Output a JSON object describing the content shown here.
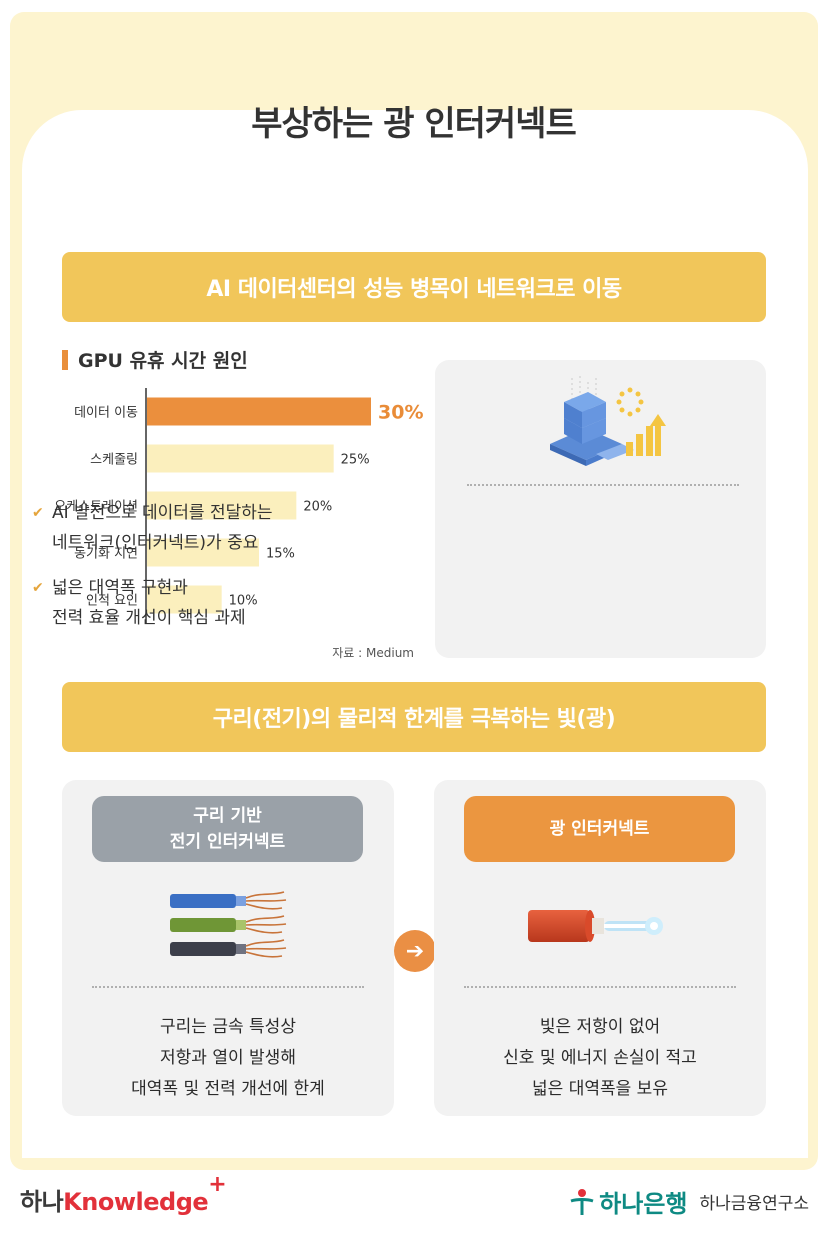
{
  "title": "부상하는 광 인터커넥트",
  "section1": {
    "banner": "AI 데이터센터의 성능 병목이 네트워크로 이동"
  },
  "chart_data": {
    "type": "bar",
    "orientation": "horizontal",
    "title": "GPU 유휴 시간 원인",
    "categories": [
      "데이터 이동",
      "스케줄링",
      "오케스트레이션",
      "동기화 지연",
      "인적 요인"
    ],
    "values": [
      30,
      25,
      20,
      15,
      10
    ],
    "value_labels": [
      "30%",
      "25%",
      "20%",
      "15%",
      "10%"
    ],
    "unit": "%",
    "highlight_index": 0,
    "colors": {
      "highlight": "#eb8f3d",
      "normal": "#fbefbd",
      "axis": "#333333",
      "highlight_label": "#e98c38"
    },
    "source": "자료 : Medium",
    "grid": false
  },
  "info": {
    "icon": "datacenter-server-icon",
    "bullets": [
      [
        "AI 발전으로 데이터를 전달하는",
        "네트워크(인터커넥트)가 중요"
      ],
      [
        "넓은 대역폭 구현과",
        "전력 효율 개선이 핵심 과제"
      ]
    ],
    "check_icon": "check-icon"
  },
  "section2": {
    "banner": "구리(전기)의 물리적 한계를 극복하는 빛(광)",
    "left": {
      "pill": [
        "구리 기반",
        "전기 인터커넥트"
      ],
      "image": "copper-wires-icon",
      "text": [
        "구리는 금속 특성상",
        "저항과 열이 발생해",
        "대역폭 및 전력 개선에 한계"
      ]
    },
    "right": {
      "pill": [
        "광 인터커넥트"
      ],
      "image": "optical-fiber-cable-icon",
      "text": [
        "빛은 저항이 없어",
        "신호 및 에너지 손실이 적고",
        "넓은 대역폭을 보유"
      ]
    },
    "arrow_icon": "arrow-right-icon"
  },
  "footer": {
    "left_prefix": "하나",
    "left_brand": "Knowledge",
    "left_plus": "+",
    "logo_icon": "hana-bank-logo-icon",
    "right_logo": "하나은행",
    "right_sub": "하나금융연구소"
  },
  "theme": {
    "frame": "#fdf4cf",
    "banner": "#f1c65a",
    "orange": "#eb9640",
    "gray_pill": "#9aa1a8",
    "panel": "#f2f2f2"
  }
}
